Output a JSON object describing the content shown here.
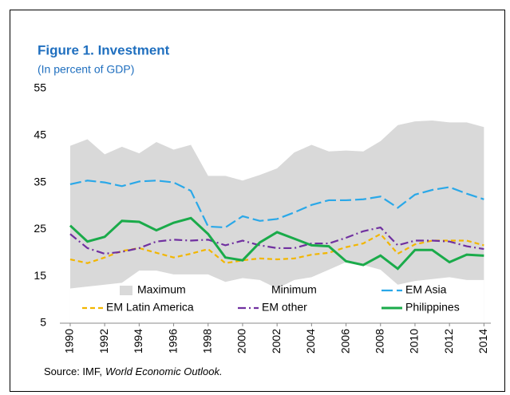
{
  "chart_data": {
    "type": "line",
    "title": "Figure 1. Investment",
    "subtitle": "(In percent of GDP)",
    "x": [
      1990,
      1991,
      1992,
      1993,
      1994,
      1995,
      1996,
      1997,
      1998,
      1999,
      2000,
      2001,
      2002,
      2003,
      2004,
      2005,
      2006,
      2007,
      2008,
      2009,
      2010,
      2011,
      2012,
      2013,
      2014
    ],
    "xlim": [
      1989.4,
      2014.4
    ],
    "xticks": [
      1990,
      1992,
      1994,
      1996,
      1998,
      2000,
      2002,
      2004,
      2006,
      2008,
      2010,
      2012,
      2014
    ],
    "ylim": [
      5,
      55
    ],
    "yticks": [
      5,
      15,
      25,
      35,
      45,
      55
    ],
    "series": [
      {
        "name": "Maximum",
        "kind": "area",
        "color": "#d9d9d9",
        "values": [
          42.8,
          44.2,
          41,
          42.6,
          41.2,
          43.6,
          42,
          43,
          36.4,
          36.4,
          35.4,
          36.6,
          38,
          41.4,
          43,
          41.6,
          41.8,
          41.6,
          43.8,
          47.2,
          48,
          48.2,
          47.8,
          47.8,
          46.8
        ]
      },
      {
        "name": "Minimum",
        "kind": "area",
        "color": "#ffffff",
        "values": [
          12.4,
          12.8,
          13.2,
          13.6,
          16.2,
          16.2,
          15.4,
          15.4,
          15.4,
          13.8,
          14.6,
          14.2,
          12.4,
          14.2,
          14.8,
          16.4,
          18,
          17.4,
          16.4,
          13.2,
          14,
          14.4,
          14.8,
          14.2,
          14.2
        ]
      },
      {
        "name": "EM Asia",
        "kind": "line",
        "color": "#2aa8e8",
        "dash": "long",
        "values": [
          34.6,
          35.4,
          35,
          34.2,
          35.2,
          35.4,
          35,
          33.2,
          25.6,
          25.4,
          27.8,
          26.8,
          27.2,
          28.6,
          30.2,
          31.2,
          31.2,
          31.4,
          32,
          29.6,
          32.4,
          33.4,
          34,
          32.6,
          31.4
        ]
      },
      {
        "name": "EM Latin America",
        "kind": "line",
        "color": "#f2b600",
        "dash": "short",
        "values": [
          18.6,
          17.8,
          19,
          20.4,
          21,
          20,
          19,
          19.8,
          20.8,
          17.8,
          18.4,
          18.8,
          18.6,
          18.8,
          19.6,
          20,
          21.2,
          22,
          24,
          19.8,
          21.8,
          22.6,
          22.6,
          22.6,
          21.6
        ]
      },
      {
        "name": "EM other",
        "kind": "line",
        "color": "#7030a0",
        "dash": "dash-dot",
        "values": [
          24,
          21,
          19.8,
          20.2,
          21,
          22.4,
          22.8,
          22.6,
          22.8,
          21.6,
          22.6,
          21.6,
          21,
          21,
          22,
          22,
          23.2,
          24.6,
          25.4,
          21.6,
          22.6,
          22.6,
          22.4,
          21.4,
          20.8
        ]
      },
      {
        "name": "Philippines",
        "kind": "line",
        "color": "#1aab4a",
        "dash": "solid",
        "values": [
          25.8,
          22.4,
          23.4,
          26.8,
          26.6,
          24.8,
          26.4,
          27.4,
          24,
          19,
          18.4,
          22.2,
          24.4,
          23,
          21.6,
          21.4,
          18.2,
          17.4,
          19.4,
          16.6,
          20.6,
          20.6,
          18,
          19.6,
          19.4
        ]
      }
    ],
    "source": {
      "text": "Source: IMF,",
      "publication": "World Economic Outlook."
    }
  }
}
